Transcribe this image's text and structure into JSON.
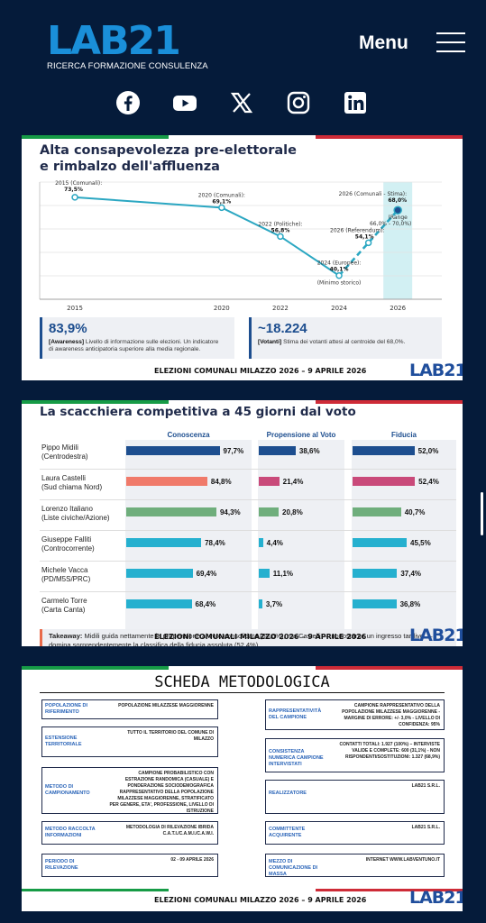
{
  "header": {
    "logo_text": "LAB21",
    "logo_tagline": "RICERCA FORMAZIONE CONSULENZA",
    "menu_label": "Menu"
  },
  "social": [
    "facebook-icon",
    "youtube-icon",
    "x-icon",
    "instagram-icon",
    "linkedin-icon"
  ],
  "colors": {
    "background": "#051b3a",
    "brand_blue": "#1a8fd9",
    "chart_teal": "#2ba7c2",
    "italy_green": "#169b46",
    "italy_red": "#ce2b37"
  },
  "slide1": {
    "title_line1": "Alta consapevolezza pre-elettorale",
    "title_line2": "e rimbalzo dell'affluenza",
    "chart_data": {
      "type": "line",
      "x": [
        2015,
        2020,
        2022,
        2024,
        2025,
        2026
      ],
      "values": [
        73.5,
        69.1,
        56.8,
        40.1,
        54.1,
        68.0
      ],
      "x_ticks": [
        "2015",
        "2020",
        "2022",
        "2024",
        "2026"
      ],
      "points": [
        {
          "label": "2015 (Comunali):",
          "value": "73,5%"
        },
        {
          "label": "2020 (Comunali):",
          "value": "69,1%"
        },
        {
          "label": "2022 (Politiche):",
          "value": "56,8%"
        },
        {
          "label": "2024 (Europee):",
          "value": "40,1%",
          "note": "(Minimo storico)"
        },
        {
          "label": "2026 (Referendum):",
          "value": "54,1%"
        },
        {
          "label": "2026 (Comunali - Stima):",
          "value": "68,0%",
          "range_label": "(Range",
          "range": "66,0% - 70,0%)"
        }
      ],
      "ylim": [
        30,
        80
      ],
      "grid": true
    },
    "kpis": [
      {
        "value": "83,9%",
        "tag": "[Awareness]",
        "desc1": " Livello di informazione sulle elezioni. Un indicatore",
        "desc2": "di awareness anticipatoria superiore alla media regionale."
      },
      {
        "value": "~18.224",
        "tag": "[Votanti]",
        "desc1": " Stima dei votanti attesi al centroide del 68,0%.",
        "desc2": ""
      }
    ],
    "footer": "ELEZIONI COMUNALI MILAZZO 2026 – 9 APRILE 2026",
    "logo": "LAB21"
  },
  "slide2": {
    "title": "La scacchiera competitiva a 45 giorni dal voto",
    "columns": [
      "Conoscenza",
      "Propensione al Voto",
      "Fiducia"
    ],
    "rows": [
      {
        "name": "Pippo Midili",
        "party": "(Centrodestra)",
        "conoscenza": 97.7,
        "propensione": 38.6,
        "fiducia": 52.0,
        "c_label": "97,7%",
        "p_label": "38,6%",
        "f_label": "52,0%"
      },
      {
        "name": "Laura Castelli",
        "party": "(Sud chiama Nord)",
        "conoscenza": 84.8,
        "propensione": 21.4,
        "fiducia": 52.4,
        "c_label": "84,8%",
        "p_label": "21,4%",
        "f_label": "52,4%"
      },
      {
        "name": "Lorenzo Italiano",
        "party": "(Liste civiche/Azione)",
        "conoscenza": 94.3,
        "propensione": 20.8,
        "fiducia": 40.7,
        "c_label": "94,3%",
        "p_label": "20,8%",
        "f_label": "40,7%"
      },
      {
        "name": "Giuseppe Falliti",
        "party": "(Controcorrente)",
        "conoscenza": 78.4,
        "propensione": 4.4,
        "fiducia": 45.5,
        "c_label": "78,4%",
        "p_label": "4,4%",
        "f_label": "45,5%"
      },
      {
        "name": "Michele Vacca",
        "party": "(PD/M5S/PRC)",
        "conoscenza": 69.4,
        "propensione": 11.1,
        "fiducia": 37.4,
        "c_label": "69,4%",
        "p_label": "11,1%",
        "f_label": "37,4%"
      },
      {
        "name": "Carmelo Torre",
        "party": "(Carta Canta)",
        "conoscenza": 68.4,
        "propensione": 3.7,
        "fiducia": 36.8,
        "c_label": "68,4%",
        "p_label": "3,7%",
        "f_label": "36,8%"
      }
    ],
    "bar_colors": {
      "conoscenza": [
        "#1d4e8f",
        "#f07a6a",
        "#6fae7c",
        "#25b0cf",
        "#25b0cf",
        "#25b0cf"
      ],
      "propensione": [
        "#1d4e8f",
        "#c94a7a",
        "#6fae7c",
        "#25b0cf",
        "#25b0cf",
        "#25b0cf"
      ],
      "fiducia": [
        "#1d4e8f",
        "#c94a7a",
        "#6fae7c",
        "#25b0cf",
        "#25b0cf",
        "#25b0cf"
      ]
    },
    "takeaway_tag": "Takeaway:",
    "takeaway_text": " Midili guida nettamente la propensione al voto consolidata (38,6%), ma Castelli — nonostante un ingresso tardivo — domina sorprendentemente la classifica della fiducia assoluta (52,4%).",
    "footer": "ELEZIONI COMUNALI MILAZZO 2026 – 9 APRILE 2026",
    "logo": "LAB21"
  },
  "slide3": {
    "title": "SCHEDA METODOLOGICA",
    "left": [
      {
        "label": "POPOLAZIONE DI RIFERIMENTO",
        "value": "POPOLAZIONE MILAZZESE MAGGIORENNE"
      },
      {
        "label": "ESTENSIONE TERRITORIALE",
        "value": "TUTTO IL TERRITORIO DEL COMUNE DI MILAZZO"
      },
      {
        "label": "METODO DI CAMPIONAMENTO",
        "value": "CAMPIONE PROBABILISTICO CON ESTRAZIONE RANDOMICA (CASUALE) E PONDERAZIONE SOCIODEMOGRAFICA RAPPRESENTATIVO DELLA POPOLAZIONE MILAZZESE MAGGIORENNE, STRATIFICATO PER GENERE, ETA', PROFESSIONE, LIVELLO DI ISTRUZIONE"
      },
      {
        "label": "METODO RACCOLTA INFORMAZIONI",
        "value": "METODOLOGIA DI RILEVAZIONE IBRIDA C.A.T.I./C.A.M.I./C.A.W.I."
      },
      {
        "label": "PERIODO DI RILEVAZIONE",
        "value": "02 - 09 APRILE 2026"
      }
    ],
    "right": [
      {
        "label": "RAPPRESENTATIVITÀ DEL CAMPIONE",
        "value": "CAMPIONE RAPPRESENTATIVO DELLA POPOLAZIONE MILAZZESE MAGGIORENNE - MARGINE DI ERRORE: +/- 3,0% - LIVELLO DI CONFIDENZA: 95%"
      },
      {
        "label": "CONSISTENZA NUMERICA CAMPIONE INTERVISTATI",
        "value": "CONTATTI TOTALI: 1.927 (100%) – INTERVISTE VALIDE E COMPLETE: 600 (31,1%) - NON RISPONDENTI/SOSTITUZIONI: 1.327 (68,9%)"
      },
      {
        "label": "REALIZZATORE",
        "value": "LAB21 S.R.L."
      },
      {
        "label": "COMMITTENTE ACQUIRENTE",
        "value": "LAB21 S.R.L."
      },
      {
        "label": "MEZZO DI COMUNICAZIONE DI MASSA",
        "value": "INTERNET WWW.LABVENTUNO.IT"
      }
    ],
    "footer": "ELEZIONI COMUNALI MILAZZO 2026 – 9 APRILE 2026",
    "logo": "LAB21"
  }
}
